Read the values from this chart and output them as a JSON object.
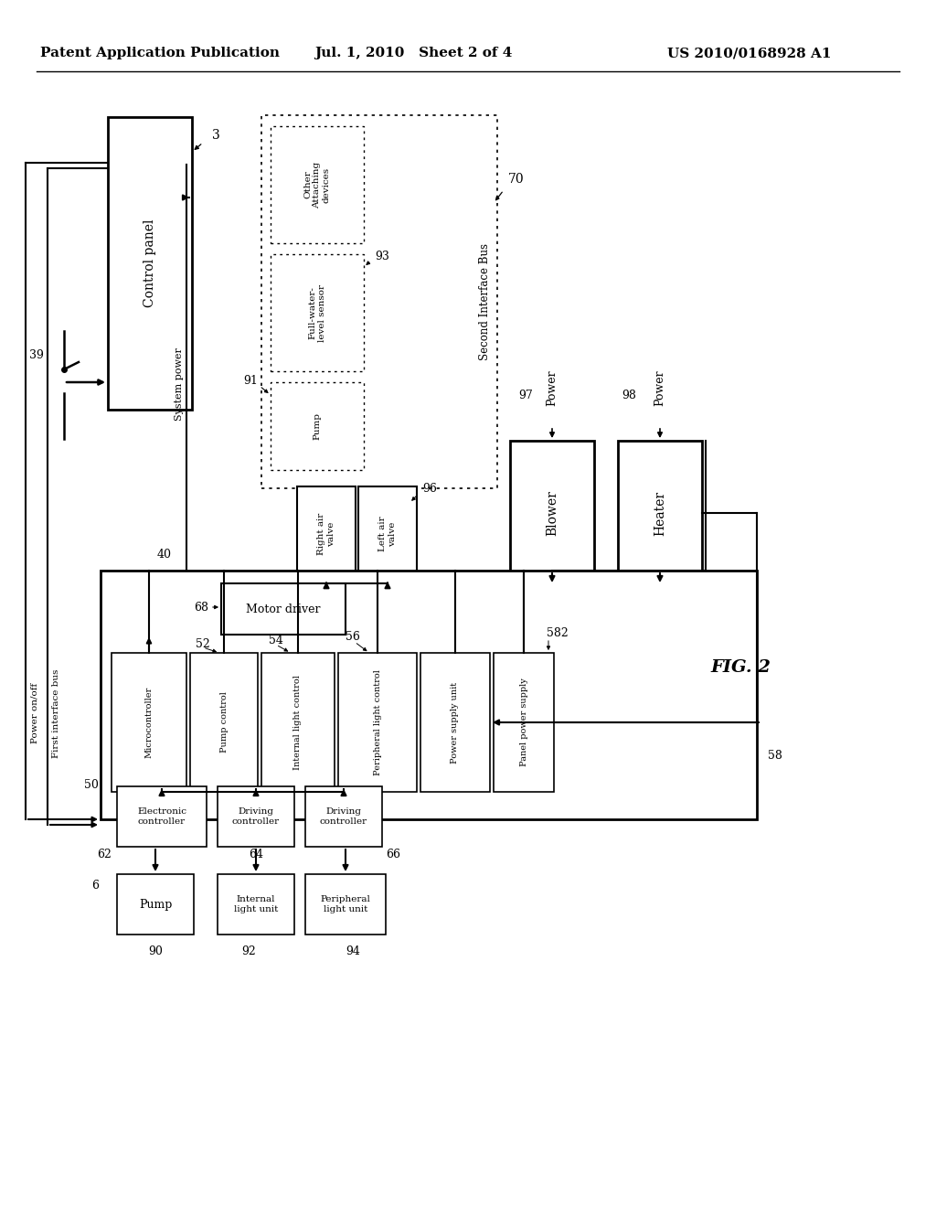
{
  "header_left": "Patent Application Publication",
  "header_mid": "Jul. 1, 2010   Sheet 2 of 4",
  "header_right": "US 2010/0168928 A1",
  "fig_label": "FIG. 2",
  "bg": "#ffffff"
}
